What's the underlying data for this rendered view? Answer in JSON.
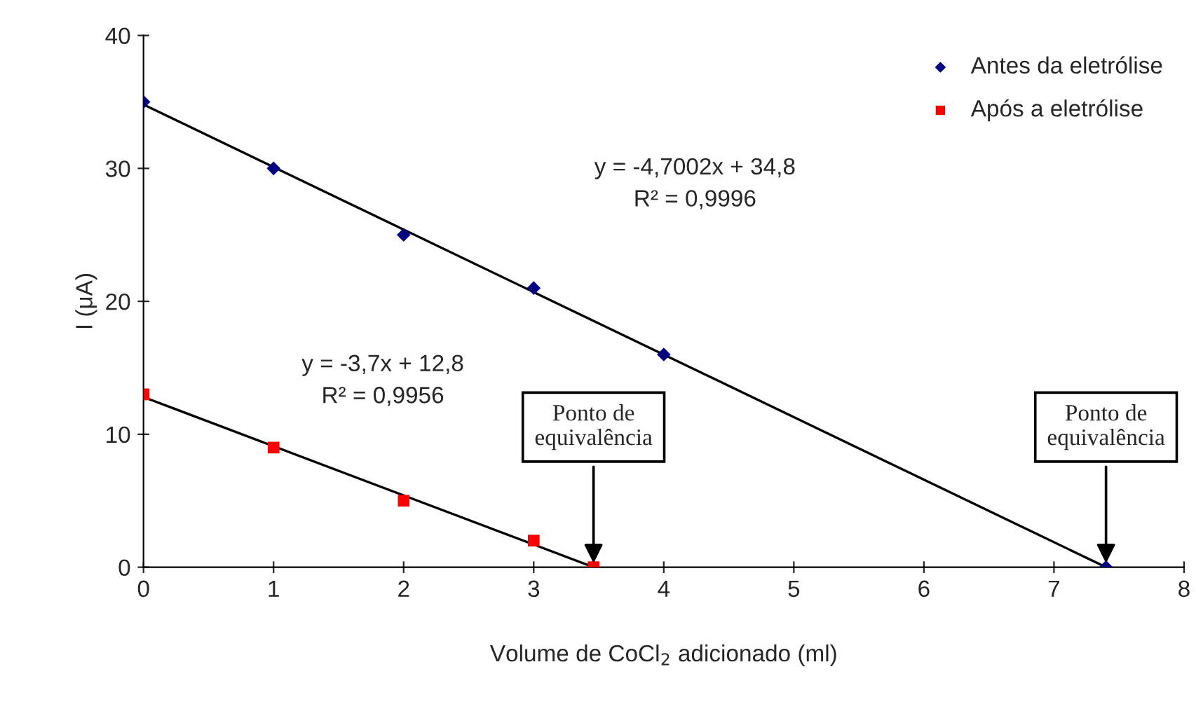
{
  "chart_data": {
    "type": "scatter",
    "xlabel": "Volume de CoCl$_{2}$ adicionado (ml)",
    "ylabel": "I (μA)",
    "xlim": [
      0,
      8
    ],
    "ylim": [
      0,
      40
    ],
    "xticks": [
      0,
      1,
      2,
      3,
      4,
      5,
      6,
      7,
      8
    ],
    "yticks": [
      0,
      10,
      20,
      30,
      40
    ],
    "grid": false,
    "legend": "top right",
    "series": [
      {
        "name": "Antes da eletrólise",
        "color": "#000080",
        "marker": "diamond",
        "x": [
          0,
          1,
          2,
          3,
          4,
          7.4
        ],
        "values": [
          35,
          30,
          25,
          21,
          16,
          0
        ]
      },
      {
        "name": "Após a eletrólise",
        "color": "#ff0000",
        "marker": "square",
        "x": [
          0,
          1,
          2,
          3,
          3.46
        ],
        "values": [
          13,
          9,
          5,
          2,
          0
        ]
      },
      {
        "type": "line",
        "color": "#000000",
        "marker": "none",
        "line_style": "solid",
        "x": [
          0,
          7.4
        ],
        "values": [
          34.8,
          0
        ]
      },
      {
        "type": "line",
        "color": "#000000",
        "marker": "none",
        "line_style": "solid",
        "x": [
          0,
          3.46
        ],
        "values": [
          12.8,
          0
        ]
      }
    ],
    "annotations": [
      "y = -4,7002x + 34,8\nR² = 0,9996",
      "y = -3,7x + 12,8\nR² = 0,9956",
      {
        "text": "Ponto de\nequivalência",
        "x": 3.46,
        "y": 0
      },
      {
        "text": "Ponto de\nequivalência",
        "x": 7.4,
        "y": 0
      }
    ]
  }
}
